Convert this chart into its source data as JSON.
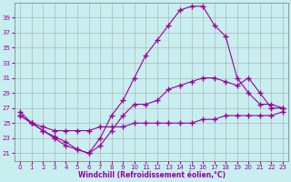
{
  "xlabel": "Windchill (Refroidissement éolien,°C)",
  "bg_color": "#c8eef0",
  "grid_color": "#aaaaaa",
  "line_color": "#990099",
  "ylim": [
    20,
    41
  ],
  "xlim": [
    -0.5,
    23.5
  ],
  "yticks": [
    21,
    23,
    25,
    27,
    29,
    31,
    33,
    35,
    37,
    39
  ],
  "xticks": [
    0,
    1,
    2,
    3,
    4,
    5,
    6,
    7,
    8,
    9,
    10,
    11,
    12,
    13,
    14,
    15,
    16,
    17,
    18,
    19,
    20,
    21,
    22,
    23
  ],
  "curve1_x": [
    0,
    1,
    2,
    3,
    4,
    5,
    6,
    7,
    8,
    9,
    10,
    11,
    12,
    13,
    14,
    15,
    16,
    17,
    18,
    19,
    20,
    21,
    22,
    23
  ],
  "curve1_y": [
    26.0,
    25.0,
    24.5,
    24.0,
    24.0,
    24.0,
    24.0,
    24.5,
    24.5,
    24.5,
    25.0,
    25.0,
    25.0,
    25.0,
    25.0,
    25.0,
    25.5,
    25.5,
    26.0,
    26.0,
    26.0,
    26.0,
    26.0,
    26.5
  ],
  "curve2_x": [
    0,
    1,
    2,
    3,
    4,
    5,
    6,
    7,
    8,
    9,
    10,
    11,
    12,
    13,
    14,
    15,
    16,
    17,
    18,
    19,
    20,
    21,
    22,
    23
  ],
  "curve2_y": [
    26.0,
    25.0,
    24.0,
    23.2,
    22.5,
    21.5,
    21.0,
    22.0,
    24.0,
    26.0,
    27.5,
    27.5,
    28.0,
    29.5,
    30.0,
    30.5,
    31.0,
    31.0,
    30.5,
    30.0,
    31.0,
    29.0,
    27.0,
    27.0
  ],
  "curve3_x": [
    0,
    1,
    2,
    3,
    4,
    5,
    6,
    7,
    8,
    9,
    10,
    11,
    12,
    13,
    14,
    15,
    16,
    17,
    18,
    19,
    20,
    21,
    22,
    23
  ],
  "curve3_y": [
    26.5,
    25.0,
    24.0,
    23.0,
    22.0,
    21.5,
    21.0,
    23.0,
    26.0,
    28.0,
    31.0,
    34.0,
    36.0,
    38.0,
    40.0,
    40.5,
    40.5,
    38.0,
    36.5,
    31.0,
    29.0,
    27.5,
    27.5,
    27.0
  ]
}
